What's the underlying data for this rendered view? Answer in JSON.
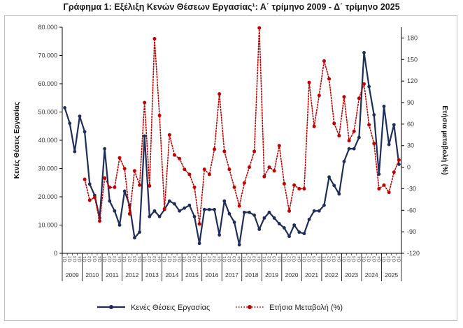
{
  "title": "Γράφημα 1: Εξέλιξη Κενών Θέσεων Εργασίας¹: Α΄ τρίμηνο 2009 - Δ΄ τρίμηνο 2025",
  "colors": {
    "series1": "#1f2d5a",
    "series2": "#c00000",
    "frame": "#bfbfbf"
  },
  "chart_data": {
    "type": "line",
    "title": "Γράφημα 1: Εξέλιξη Κενών Θέσεων Εργασίας¹: Α΄ τρίμηνο 2009 - Δ΄ τρίμηνο 2025",
    "xlabel": "",
    "ylabel": "Κενές Θέσεις Εργασίας",
    "y2label": "Ετήσια μεταβολή (%)",
    "ylim": [
      0,
      80000
    ],
    "y2lim": [
      -120,
      195
    ],
    "yticks": [
      "0",
      "10.000",
      "20.000",
      "30.000",
      "40.000",
      "50.000",
      "60.000",
      "70.000",
      "80.000"
    ],
    "y2ticks": [
      "-120",
      "-90",
      "-60",
      "-30",
      "0",
      "30",
      "60",
      "90",
      "120",
      "150",
      "180"
    ],
    "years": [
      "2009",
      "2010",
      "2011",
      "2012",
      "2013",
      "2014",
      "2015",
      "2016",
      "2017",
      "2018",
      "2019",
      "2020",
      "2021",
      "2022",
      "2023",
      "2024",
      "2025"
    ],
    "quarter_labels": [
      "Q1",
      "Q2",
      "Q3",
      "Q4"
    ],
    "grid": false,
    "legend_position": "bottom",
    "series": [
      {
        "name": "Κενές Θέσεις Εργασίας",
        "axis": "left",
        "style": "solid-line-circles",
        "values": [
          51500,
          46000,
          36000,
          48500,
          43000,
          24500,
          20500,
          12500,
          37000,
          18500,
          15000,
          10000,
          22000,
          17000,
          5500,
          7500,
          41500,
          13000,
          15000,
          13000,
          15500,
          18500,
          17500,
          15000,
          16000,
          17000,
          13000,
          3500,
          15500,
          15500,
          15500,
          6500,
          18500,
          14000,
          11000,
          3000,
          14500,
          14500,
          13500,
          8500,
          12500,
          14500,
          12500,
          10500,
          9000,
          6000,
          10000,
          7500,
          7000,
          12000,
          15000,
          15000,
          17000,
          27000,
          24000,
          21000,
          32500,
          37000,
          37000,
          41000,
          71000,
          59000,
          49000,
          28000,
          52000,
          38500,
          45500,
          31500
        ]
      },
      {
        "name": "Ετήσια Μεταβολή (%)",
        "axis": "right",
        "style": "dotted-line-circles",
        "x_start_index": 4,
        "values": [
          -17,
          -46,
          -42,
          -75,
          -15,
          -28,
          -28,
          13,
          -2,
          -65,
          -5,
          -25,
          90,
          -26,
          179,
          72,
          -58,
          45,
          17,
          12,
          -3,
          -10,
          -28,
          -79,
          -3,
          -10,
          25,
          102,
          22,
          -3,
          -28,
          -54,
          -22,
          0,
          22,
          194,
          -13,
          0,
          -5,
          30,
          -23,
          -61,
          -25,
          -30,
          -30,
          118,
          57,
          100,
          148,
          123,
          61,
          44,
          98,
          37,
          50,
          96,
          116,
          59,
          33,
          -30,
          -25,
          -35,
          -7,
          10
        ]
      }
    ]
  }
}
